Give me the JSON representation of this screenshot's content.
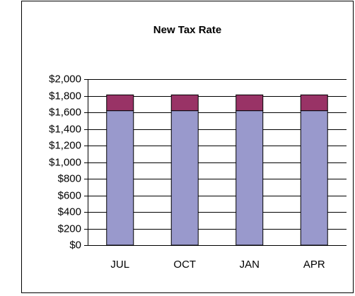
{
  "chart_data": {
    "type": "bar",
    "stacked": true,
    "title": "New Tax Rate",
    "categories": [
      "JUL",
      "OCT",
      "JAN",
      "APR"
    ],
    "series": [
      {
        "color": "#9999cc",
        "values": [
          1620,
          1620,
          1620,
          1620
        ]
      },
      {
        "color": "#993366",
        "values": [
          190,
          190,
          190,
          190
        ]
      }
    ],
    "ylim": [
      0,
      2000
    ],
    "yticks": [
      {
        "value": 0,
        "label": "$0"
      },
      {
        "value": 200,
        "label": "$200"
      },
      {
        "value": 400,
        "label": "$400"
      },
      {
        "value": 600,
        "label": "$600"
      },
      {
        "value": 800,
        "label": "$800"
      },
      {
        "value": 1000,
        "label": "$1,000"
      },
      {
        "value": 1200,
        "label": "$1,200"
      },
      {
        "value": 1400,
        "label": "$1,400"
      },
      {
        "value": 1600,
        "label": "$1,600"
      },
      {
        "value": 1800,
        "label": "$1,800"
      },
      {
        "value": 2000,
        "label": "$2,000"
      }
    ],
    "grid": true
  }
}
